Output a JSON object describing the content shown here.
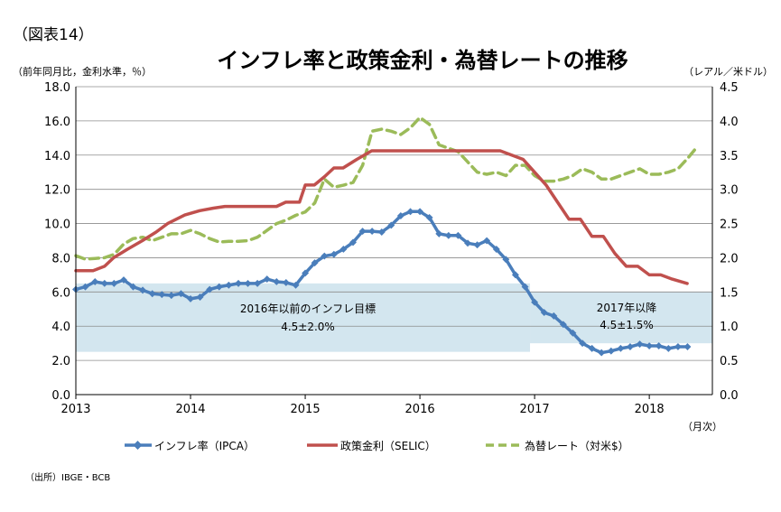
{
  "figure_label": "（図表14）",
  "chart_data": {
    "type": "line",
    "title": "インフレ率と政策金利・為替レートの推移",
    "ylabel_left": "（前年同月比，金利水準，％）",
    "ylabel_right": "（レアル／米ドル）",
    "xlabel": "（月次）",
    "source": "（出所）IBGE・BCB",
    "y_left": {
      "min": 0,
      "max": 18,
      "ticks": [
        "0.0",
        "2.0",
        "4.0",
        "6.0",
        "8.0",
        "10.0",
        "12.0",
        "14.0",
        "16.0",
        "18.0"
      ]
    },
    "y_right": {
      "min": 0,
      "max": 4.5,
      "ticks": [
        "0.0",
        "0.5",
        "1.0",
        "1.5",
        "2.0",
        "2.5",
        "3.0",
        "3.5",
        "4.0",
        "4.5"
      ]
    },
    "x_axis": {
      "min": 2013.0,
      "max": 2018.55,
      "ticks": [
        "2013",
        "2014",
        "2015",
        "2016",
        "2017",
        "2018"
      ]
    },
    "grid": "horizontal",
    "legend_position": "bottom",
    "target_bands": [
      {
        "label_line1": "2016年以前のインフレ目標",
        "label_line2": "4.5±2.0%",
        "x_start": 2013.0,
        "x_end": 2016.96,
        "y_low": 2.5,
        "y_high": 6.5
      },
      {
        "label_line1": "2017年以降",
        "label_line2": "4.5±1.5%",
        "x_start": 2016.96,
        "x_end": 2018.55,
        "y_low": 3.0,
        "y_high": 6.0
      }
    ],
    "series": [
      {
        "name": "インフレ率（IPCA）",
        "axis": "left",
        "style": "line-markers",
        "color": "#4a7ebb",
        "x": [
          2013.0,
          2013.083,
          2013.167,
          2013.25,
          2013.333,
          2013.417,
          2013.5,
          2013.583,
          2013.667,
          2013.75,
          2013.833,
          2013.917,
          2014.0,
          2014.083,
          2014.167,
          2014.25,
          2014.333,
          2014.417,
          2014.5,
          2014.583,
          2014.667,
          2014.75,
          2014.833,
          2014.917,
          2015.0,
          2015.083,
          2015.167,
          2015.25,
          2015.333,
          2015.417,
          2015.5,
          2015.583,
          2015.667,
          2015.75,
          2015.833,
          2015.917,
          2016.0,
          2016.083,
          2016.167,
          2016.25,
          2016.333,
          2016.417,
          2016.5,
          2016.583,
          2016.667,
          2016.75,
          2016.833,
          2016.917,
          2017.0,
          2017.083,
          2017.167,
          2017.25,
          2017.333,
          2017.417,
          2017.5,
          2017.583,
          2017.667,
          2017.75,
          2017.833,
          2017.917,
          2018.0,
          2018.083,
          2018.167,
          2018.25,
          2018.333
        ],
        "values": [
          6.15,
          6.3,
          6.6,
          6.5,
          6.5,
          6.7,
          6.3,
          6.1,
          5.9,
          5.85,
          5.8,
          5.9,
          5.6,
          5.7,
          6.15,
          6.3,
          6.4,
          6.5,
          6.5,
          6.5,
          6.75,
          6.6,
          6.55,
          6.4,
          7.1,
          7.7,
          8.1,
          8.2,
          8.5,
          8.9,
          9.55,
          9.55,
          9.5,
          9.9,
          10.45,
          10.7,
          10.7,
          10.35,
          9.4,
          9.3,
          9.3,
          8.85,
          8.75,
          9.0,
          8.5,
          7.9,
          7.0,
          6.3,
          5.4,
          4.8,
          4.6,
          4.1,
          3.6,
          3.0,
          2.7,
          2.45,
          2.55,
          2.7,
          2.8,
          2.95,
          2.85,
          2.85,
          2.7,
          2.8,
          2.8
        ]
      },
      {
        "name": "政策金利（SELIC）",
        "axis": "left",
        "style": "line",
        "color": "#c0504d",
        "x": [
          2013.0,
          2013.15,
          2013.25,
          2013.33,
          2013.45,
          2013.58,
          2013.7,
          2013.8,
          2013.95,
          2014.08,
          2014.2,
          2014.3,
          2014.45,
          2014.6,
          2014.75,
          2014.83,
          2014.95,
          2015.0,
          2015.08,
          2015.17,
          2015.25,
          2015.33,
          2015.45,
          2015.58,
          2015.7,
          2015.83,
          2016.0,
          2016.2,
          2016.4,
          2016.6,
          2016.7,
          2016.8,
          2016.9,
          2017.0,
          2017.1,
          2017.2,
          2017.3,
          2017.4,
          2017.5,
          2017.6,
          2017.7,
          2017.8,
          2017.9,
          2018.0,
          2018.1,
          2018.2,
          2018.33
        ],
        "values": [
          7.25,
          7.25,
          7.5,
          8.0,
          8.5,
          9.0,
          9.5,
          10.0,
          10.5,
          10.75,
          10.9,
          11.0,
          11.0,
          11.0,
          11.0,
          11.25,
          11.25,
          12.25,
          12.25,
          12.75,
          13.25,
          13.25,
          13.75,
          14.25,
          14.25,
          14.25,
          14.25,
          14.25,
          14.25,
          14.25,
          14.25,
          14.0,
          13.75,
          13.0,
          12.25,
          11.25,
          10.25,
          10.25,
          9.25,
          9.25,
          8.25,
          7.5,
          7.5,
          7.0,
          7.0,
          6.75,
          6.5
        ]
      },
      {
        "name": "為替レート（対米$）",
        "axis": "right",
        "style": "dashed",
        "color": "#9bbb59",
        "x": [
          2013.0,
          2013.083,
          2013.167,
          2013.25,
          2013.333,
          2013.417,
          2013.5,
          2013.583,
          2013.667,
          2013.75,
          2013.833,
          2013.917,
          2014.0,
          2014.083,
          2014.167,
          2014.25,
          2014.333,
          2014.417,
          2014.5,
          2014.583,
          2014.667,
          2014.75,
          2014.833,
          2014.917,
          2015.0,
          2015.083,
          2015.167,
          2015.25,
          2015.333,
          2015.417,
          2015.5,
          2015.583,
          2015.667,
          2015.75,
          2015.833,
          2015.917,
          2016.0,
          2016.083,
          2016.167,
          2016.25,
          2016.333,
          2016.417,
          2016.5,
          2016.583,
          2016.667,
          2016.75,
          2016.833,
          2016.917,
          2017.0,
          2017.083,
          2017.167,
          2017.25,
          2017.333,
          2017.417,
          2017.5,
          2017.583,
          2017.667,
          2017.75,
          2017.833,
          2017.917,
          2018.0,
          2018.083,
          2018.167,
          2018.25,
          2018.333,
          2018.417
        ],
        "values": [
          2.03,
          1.98,
          1.99,
          2.0,
          2.05,
          2.2,
          2.28,
          2.3,
          2.25,
          2.3,
          2.35,
          2.35,
          2.4,
          2.35,
          2.28,
          2.23,
          2.24,
          2.24,
          2.25,
          2.3,
          2.4,
          2.5,
          2.55,
          2.62,
          2.67,
          2.8,
          3.15,
          3.03,
          3.06,
          3.1,
          3.35,
          3.85,
          3.88,
          3.85,
          3.8,
          3.9,
          4.05,
          3.95,
          3.65,
          3.6,
          3.55,
          3.4,
          3.25,
          3.22,
          3.25,
          3.2,
          3.35,
          3.35,
          3.2,
          3.12,
          3.12,
          3.15,
          3.2,
          3.3,
          3.25,
          3.15,
          3.15,
          3.2,
          3.25,
          3.3,
          3.22,
          3.22,
          3.25,
          3.3,
          3.45,
          3.62
        ]
      }
    ]
  }
}
